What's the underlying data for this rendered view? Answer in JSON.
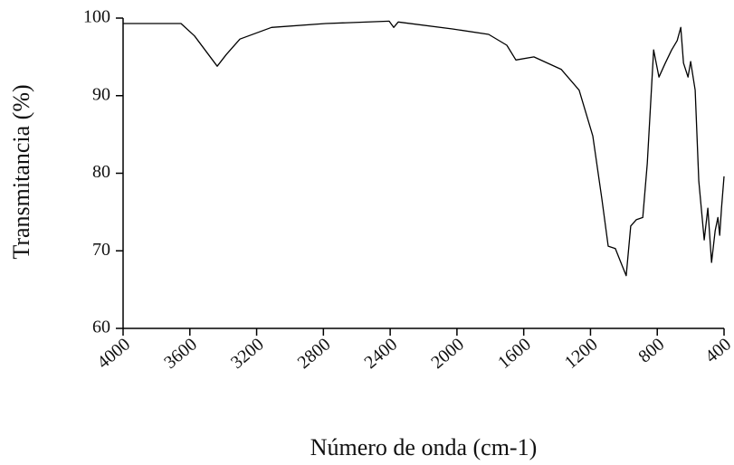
{
  "chart_data": {
    "type": "line",
    "x_label": "Número de onda (cm-1)",
    "y_label": "Transmitancia (%)",
    "color": "#000000",
    "x": [
      4000,
      3653,
      3572,
      3436,
      3382,
      3300,
      3111,
      2786,
      2406,
      2379,
      2352,
      2027,
      1810,
      1701,
      1647,
      1539,
      1376,
      1268,
      1186,
      1132,
      1094,
      1051,
      1018,
      986,
      959,
      926,
      887,
      860,
      822,
      790,
      752,
      714,
      681,
      659,
      643,
      616,
      600,
      573,
      551,
      519,
      497,
      475,
      453,
      437,
      426,
      415,
      400
    ],
    "values": [
      99.3,
      99.3,
      97.7,
      93.8,
      95.3,
      97.3,
      98.8,
      99.3,
      99.6,
      98.8,
      99.5,
      98.6,
      97.9,
      96.5,
      94.6,
      95.0,
      93.4,
      90.7,
      84.8,
      76.7,
      70.6,
      70.3,
      68.5,
      66.8,
      73.2,
      74.0,
      74.3,
      81.3,
      95.9,
      92.4,
      94.2,
      95.9,
      97.1,
      98.8,
      94.2,
      92.4,
      94.4,
      90.7,
      79.0,
      71.4,
      75.5,
      68.5,
      72.6,
      74.3,
      72.0,
      75.5,
      79.6
    ],
    "xlim": [
      4000,
      400
    ],
    "xticks": [
      4000,
      3600,
      3200,
      2800,
      2400,
      2000,
      1600,
      1200,
      800,
      400
    ],
    "ylim": [
      60,
      100
    ],
    "yticks": [
      60,
      70,
      80,
      90,
      100
    ]
  }
}
